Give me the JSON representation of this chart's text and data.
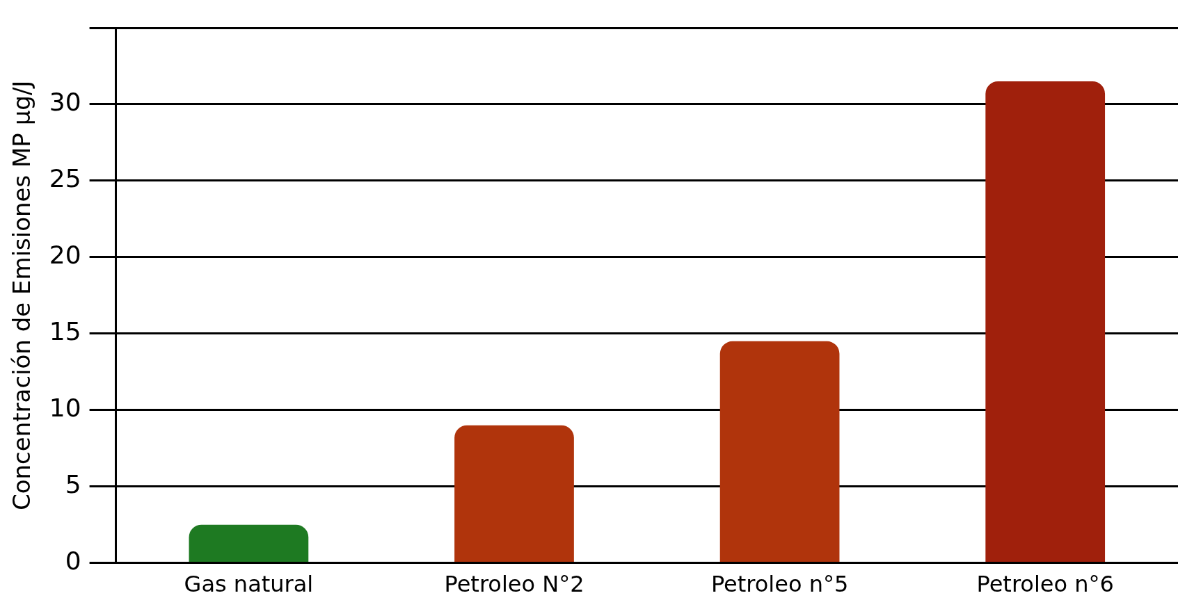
{
  "chart_data": {
    "type": "bar",
    "ylabel": "Concentración de Emisiones MP μg/J",
    "categories": [
      "Gas natural",
      "Petroleo N°2",
      "Petroleo n°5",
      "Petroleo n°6"
    ],
    "values": [
      2.5,
      9,
      14.5,
      31.5
    ],
    "colors": [
      "#1e7a22",
      "#b0340c",
      "#b0340c",
      "#a0200c"
    ],
    "ylim": [
      0,
      35
    ],
    "yticks": [
      0,
      5,
      10,
      15,
      20,
      25,
      30,
      {
        "value": 35,
        "label": null
      }
    ],
    "grid": "y",
    "legend": false
  }
}
